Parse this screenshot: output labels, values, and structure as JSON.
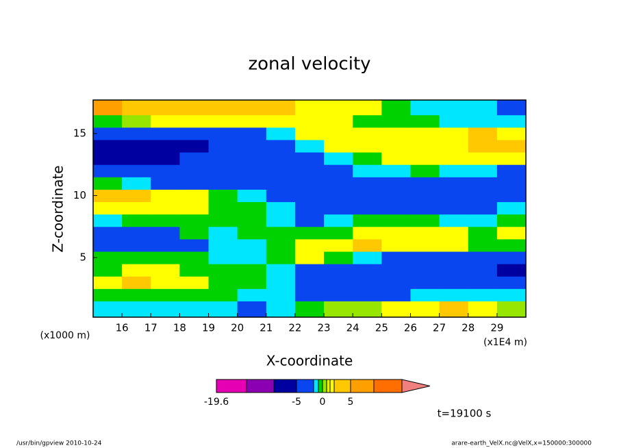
{
  "chart_data": {
    "type": "contour",
    "title": "zonal velocity",
    "xlabel": "X-coordinate",
    "ylabel": "Z-coordinate",
    "xunits": "(x1E4 m)",
    "yunits": "(x1000 m)",
    "time_label": "t=19100 s",
    "footer_left": "/usr/bin/gpview  2010-10-24",
    "footer_right": "arare-earth_VelX.nc@VelX,x=150000:300000",
    "xlim": [
      15,
      30
    ],
    "ylim": [
      0.2,
      17.7
    ],
    "xticks": [
      16,
      17,
      18,
      19,
      20,
      21,
      22,
      23,
      24,
      25,
      26,
      27,
      28,
      29
    ],
    "yticks": [
      5,
      10,
      15
    ],
    "x": [
      15.5,
      16.5,
      17.5,
      18.5,
      19.5,
      20.5,
      21.5,
      22.5,
      23.5,
      24.5,
      25.5,
      26.5,
      27.5,
      28.5,
      29.5
    ],
    "y": [
      1,
      2,
      3,
      4,
      5,
      6,
      7,
      8,
      9,
      10,
      11,
      12,
      13,
      14,
      15,
      16,
      17
    ],
    "z": [
      [
        -2,
        -2,
        -2,
        -2,
        -2,
        -4,
        -2,
        -0.5,
        0.5,
        0.5,
        2.5,
        2.5,
        4,
        2.5,
        0.5
      ],
      [
        -0.5,
        -0.5,
        -0.5,
        -0.5,
        -0.5,
        -2,
        -2,
        -4,
        -4,
        -4,
        -4,
        -2,
        -2,
        -2,
        -2
      ],
      [
        2.5,
        4,
        2.5,
        2.5,
        -0.5,
        -0.5,
        -2,
        -4,
        -4,
        -4,
        -4,
        -4,
        -4,
        -4,
        -4
      ],
      [
        -0.5,
        2.5,
        2.5,
        -0.5,
        -0.5,
        -0.5,
        -2,
        -4,
        -4,
        -4,
        -4,
        -4,
        -4,
        -4,
        -7
      ],
      [
        -0.5,
        -0.5,
        -0.5,
        -0.5,
        -2,
        -2,
        -0.5,
        2.5,
        -0.5,
        -2,
        -4,
        -4,
        -4,
        -4,
        -4
      ],
      [
        -4,
        -4,
        -4,
        -4,
        -2,
        -2,
        -0.5,
        2.5,
        2.5,
        4,
        2.5,
        2.5,
        2.5,
        -0.5,
        -0.5
      ],
      [
        -4,
        -4,
        -4,
        -0.5,
        -2,
        -0.5,
        -0.5,
        -0.5,
        -0.5,
        2.5,
        2.5,
        2.5,
        2.5,
        -0.5,
        2.5
      ],
      [
        -2,
        -0.5,
        -0.5,
        -0.5,
        -0.5,
        -0.5,
        -2,
        -4,
        -2,
        -0.5,
        -0.5,
        -0.5,
        -2,
        -2,
        -0.5
      ],
      [
        2.5,
        2.5,
        2.5,
        2.5,
        -0.5,
        -0.5,
        -2,
        -4,
        -4,
        -4,
        -4,
        -4,
        -4,
        -4,
        -2
      ],
      [
        4,
        4,
        2.5,
        2.5,
        -0.5,
        -2,
        -4,
        -4,
        -4,
        -4,
        -4,
        -4,
        -4,
        -4,
        -4
      ],
      [
        -0.5,
        -2,
        -4,
        -4,
        -4,
        -4,
        -4,
        -4,
        -4,
        -4,
        -4,
        -4,
        -4,
        -4,
        -4
      ],
      [
        -4,
        -4,
        -4,
        -4,
        -4,
        -4,
        -4,
        -4,
        -4,
        -2,
        -2,
        -0.5,
        -2,
        -2,
        -4
      ],
      [
        -7,
        -7,
        -7,
        -4,
        -4,
        -4,
        -4,
        -4,
        -2,
        -0.5,
        2.5,
        2.5,
        2.5,
        2.5,
        2.5
      ],
      [
        -7,
        -7,
        -7,
        -7,
        -4,
        -4,
        -4,
        -2,
        2.5,
        2.5,
        2.5,
        2.5,
        2.5,
        4,
        4
      ],
      [
        -4,
        -4,
        -4,
        -4,
        -4,
        -4,
        -2,
        2.5,
        2.5,
        2.5,
        2.5,
        2.5,
        2.5,
        4,
        2.5
      ],
      [
        -0.5,
        0.5,
        2.5,
        2.5,
        2.5,
        2.5,
        2.5,
        2.5,
        2.5,
        -0.5,
        -0.5,
        -0.5,
        -2,
        -2,
        -2
      ],
      [
        7,
        4,
        4,
        4,
        4,
        4,
        4,
        2.5,
        2.5,
        2.5,
        -0.5,
        -2,
        -2,
        -2,
        -4
      ]
    ],
    "colorbar": {
      "levels": [
        -19.6,
        -15,
        -10,
        -5,
        -3,
        -1,
        0,
        1,
        2,
        3,
        5,
        10,
        15
      ],
      "colors": [
        "#e600b4",
        "#8c00b4",
        "#0000a0",
        "#0a46f0",
        "#00e6ff",
        "#00d200",
        "#96e600",
        "#e6f000",
        "#ffff00",
        "#ffc800",
        "#ffa000",
        "#ff6e00",
        "#ff1e1e",
        "#f08080"
      ],
      "ticks": [
        -19.6,
        -5,
        0,
        5
      ]
    }
  }
}
